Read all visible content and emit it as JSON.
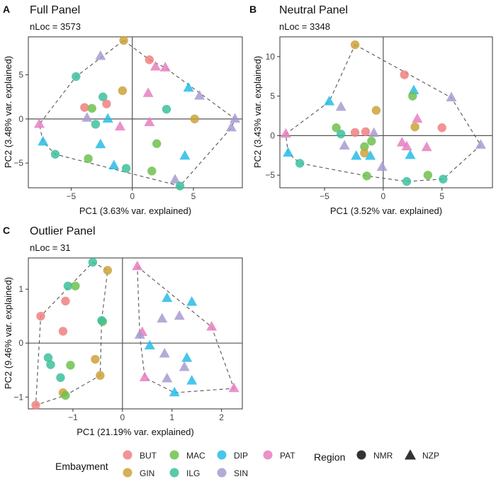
{
  "colors": {
    "BUT": "#F08080",
    "GIN": "#CCA23A",
    "MAC": "#6EC14F",
    "ILG": "#3DBF9E",
    "DIP": "#27BCE8",
    "PAT": "#E67FC0",
    "SIN": "#A89BD0"
  },
  "chart_data": [
    {
      "type": "scatter",
      "letter": "A",
      "title": "Full Panel",
      "subtitle": "nLoc = 3573",
      "xlabel": "PC1 (3.63% var. explained)",
      "ylabel": "PC2 (3.48% var. explained)",
      "xlim": [
        -8.5,
        9.0
      ],
      "ylim": [
        -7.8,
        9.3
      ],
      "xticks": [
        -5,
        0,
        5
      ],
      "yticks": [
        -5,
        0,
        5
      ],
      "points": [
        {
          "x": -0.7,
          "y": 8.9,
          "g": "GIN",
          "r": "NMR"
        },
        {
          "x": -4.6,
          "y": 4.8,
          "g": "ILG",
          "r": "NMR"
        },
        {
          "x": -2.6,
          "y": 7.1,
          "g": "SIN",
          "r": "NZP"
        },
        {
          "x": 1.4,
          "y": 6.7,
          "g": "BUT",
          "r": "NMR"
        },
        {
          "x": 1.9,
          "y": 5.9,
          "g": "PAT",
          "r": "NZP"
        },
        {
          "x": 2.7,
          "y": 5.8,
          "g": "PAT",
          "r": "NZP"
        },
        {
          "x": -0.8,
          "y": 3.2,
          "g": "GIN",
          "r": "NMR"
        },
        {
          "x": 1.3,
          "y": 2.9,
          "g": "PAT",
          "r": "NZP"
        },
        {
          "x": -2.4,
          "y": 2.5,
          "g": "ILG",
          "r": "NMR"
        },
        {
          "x": -3.9,
          "y": 1.3,
          "g": "BUT",
          "r": "NMR"
        },
        {
          "x": -3.3,
          "y": 1.2,
          "g": "MAC",
          "r": "NMR"
        },
        {
          "x": -2.1,
          "y": 1.7,
          "g": "BUT",
          "r": "NMR"
        },
        {
          "x": 4.6,
          "y": 3.5,
          "g": "DIP",
          "r": "NZP"
        },
        {
          "x": 5.5,
          "y": 2.6,
          "g": "SIN",
          "r": "NZP"
        },
        {
          "x": 2.8,
          "y": 1.1,
          "g": "ILG",
          "r": "NMR"
        },
        {
          "x": 5.1,
          "y": 0.0,
          "g": "GIN",
          "r": "NMR"
        },
        {
          "x": -3.7,
          "y": 0.1,
          "g": "SIN",
          "r": "NZP"
        },
        {
          "x": -3.0,
          "y": -0.6,
          "g": "ILG",
          "r": "NMR"
        },
        {
          "x": -2.0,
          "y": 0.0,
          "g": "DIP",
          "r": "NZP"
        },
        {
          "x": -1.0,
          "y": -0.9,
          "g": "PAT",
          "r": "NZP"
        },
        {
          "x": 1.4,
          "y": -0.4,
          "g": "PAT",
          "r": "NZP"
        },
        {
          "x": 8.4,
          "y": 0.0,
          "g": "SIN",
          "r": "NZP"
        },
        {
          "x": 8.1,
          "y": -1.0,
          "g": "SIN",
          "r": "NZP"
        },
        {
          "x": -7.6,
          "y": -0.6,
          "g": "PAT",
          "r": "NZP"
        },
        {
          "x": -7.3,
          "y": -2.6,
          "g": "DIP",
          "r": "NZP"
        },
        {
          "x": -2.6,
          "y": -2.9,
          "g": "DIP",
          "r": "NZP"
        },
        {
          "x": 2.0,
          "y": -2.8,
          "g": "MAC",
          "r": "NMR"
        },
        {
          "x": -6.3,
          "y": -4.0,
          "g": "ILG",
          "r": "NMR"
        },
        {
          "x": -3.6,
          "y": -4.5,
          "g": "MAC",
          "r": "NMR"
        },
        {
          "x": 4.3,
          "y": -4.2,
          "g": "DIP",
          "r": "NZP"
        },
        {
          "x": -1.5,
          "y": -5.3,
          "g": "DIP",
          "r": "NZP"
        },
        {
          "x": -0.5,
          "y": -5.6,
          "g": "ILG",
          "r": "NMR"
        },
        {
          "x": 1.6,
          "y": -5.9,
          "g": "MAC",
          "r": "NMR"
        },
        {
          "x": 3.5,
          "y": -6.9,
          "g": "SIN",
          "r": "NZP"
        },
        {
          "x": 3.9,
          "y": -7.6,
          "g": "ILG",
          "r": "NMR"
        }
      ],
      "hull": [
        [
          -0.7,
          8.9
        ],
        [
          1.4,
          6.7
        ],
        [
          2.7,
          5.8
        ],
        [
          8.4,
          0.0
        ],
        [
          8.1,
          -1.0
        ],
        [
          3.9,
          -7.6
        ],
        [
          -6.3,
          -4.0
        ],
        [
          -7.3,
          -2.6
        ],
        [
          -7.6,
          -0.6
        ],
        [
          -4.6,
          4.8
        ]
      ]
    },
    {
      "type": "scatter",
      "letter": "B",
      "title": "Neutral Panel",
      "subtitle": "nLoc = 3348",
      "xlabel": "PC1 (3.52% var. explained)",
      "ylabel": "PC2 (3.43% var. explained)",
      "xlim": [
        -8.8,
        9.3
      ],
      "ylim": [
        -6.6,
        12.5
      ],
      "xticks": [
        -5,
        0,
        5
      ],
      "yticks": [
        -5,
        0,
        5,
        10
      ],
      "points": [
        {
          "x": -2.4,
          "y": 11.5,
          "g": "GIN",
          "r": "NMR"
        },
        {
          "x": 1.8,
          "y": 7.7,
          "g": "BUT",
          "r": "NMR"
        },
        {
          "x": 2.6,
          "y": 5.7,
          "g": "DIP",
          "r": "NZP"
        },
        {
          "x": 2.5,
          "y": 5.0,
          "g": "MAC",
          "r": "NMR"
        },
        {
          "x": 5.8,
          "y": 4.8,
          "g": "SIN",
          "r": "NZP"
        },
        {
          "x": -4.6,
          "y": 4.3,
          "g": "DIP",
          "r": "NZP"
        },
        {
          "x": -3.6,
          "y": 3.6,
          "g": "SIN",
          "r": "NZP"
        },
        {
          "x": -0.6,
          "y": 3.2,
          "g": "GIN",
          "r": "NMR"
        },
        {
          "x": 2.9,
          "y": 2.1,
          "g": "PAT",
          "r": "NZP"
        },
        {
          "x": 2.7,
          "y": 1.1,
          "g": "GIN",
          "r": "NMR"
        },
        {
          "x": 5.0,
          "y": 1.0,
          "g": "BUT",
          "r": "NMR"
        },
        {
          "x": -4.0,
          "y": 1.0,
          "g": "MAC",
          "r": "NMR"
        },
        {
          "x": -3.6,
          "y": 0.2,
          "g": "ILG",
          "r": "NMR"
        },
        {
          "x": -2.4,
          "y": 0.4,
          "g": "BUT",
          "r": "NMR"
        },
        {
          "x": -1.5,
          "y": 0.5,
          "g": "BUT",
          "r": "NMR"
        },
        {
          "x": -0.8,
          "y": 0.3,
          "g": "SIN",
          "r": "NZP"
        },
        {
          "x": -8.3,
          "y": 0.2,
          "g": "PAT",
          "r": "NZP"
        },
        {
          "x": -8.1,
          "y": -2.2,
          "g": "DIP",
          "r": "NZP"
        },
        {
          "x": -7.1,
          "y": -3.5,
          "g": "ILG",
          "r": "NMR"
        },
        {
          "x": -3.3,
          "y": -1.3,
          "g": "SIN",
          "r": "NZP"
        },
        {
          "x": -1.6,
          "y": -1.4,
          "g": "MAC",
          "r": "NMR"
        },
        {
          "x": -1.6,
          "y": -2.2,
          "g": "GIN",
          "r": "NMR"
        },
        {
          "x": -1.1,
          "y": -2.6,
          "g": "DIP",
          "r": "NZP"
        },
        {
          "x": -2.3,
          "y": -2.6,
          "g": "DIP",
          "r": "NZP"
        },
        {
          "x": -1.0,
          "y": -0.7,
          "g": "MAC",
          "r": "NMR"
        },
        {
          "x": 1.6,
          "y": -0.9,
          "g": "PAT",
          "r": "NZP"
        },
        {
          "x": 2.0,
          "y": -1.4,
          "g": "PAT",
          "r": "NZP"
        },
        {
          "x": 3.7,
          "y": -1.5,
          "g": "PAT",
          "r": "NZP"
        },
        {
          "x": 2.3,
          "y": -2.5,
          "g": "DIP",
          "r": "NZP"
        },
        {
          "x": 8.3,
          "y": -1.2,
          "g": "SIN",
          "r": "NZP"
        },
        {
          "x": -0.1,
          "y": -4.0,
          "g": "SIN",
          "r": "NZP"
        },
        {
          "x": -1.4,
          "y": -5.1,
          "g": "MAC",
          "r": "NMR"
        },
        {
          "x": 2.0,
          "y": -5.8,
          "g": "ILG",
          "r": "NMR"
        },
        {
          "x": 3.8,
          "y": -5.0,
          "g": "MAC",
          "r": "NMR"
        },
        {
          "x": 5.1,
          "y": -5.5,
          "g": "ILG",
          "r": "NMR"
        }
      ],
      "hull": [
        [
          -2.4,
          11.5
        ],
        [
          5.8,
          4.8
        ],
        [
          8.3,
          -1.2
        ],
        [
          5.1,
          -5.5
        ],
        [
          2.0,
          -5.8
        ],
        [
          -1.4,
          -5.1
        ],
        [
          -7.1,
          -3.5
        ],
        [
          -8.1,
          -2.2
        ],
        [
          -8.3,
          0.2
        ],
        [
          -4.6,
          4.3
        ]
      ]
    },
    {
      "type": "scatter",
      "letter": "C",
      "title": "Outlier Panel",
      "subtitle": "nLoc = 31",
      "xlabel": "PC1 (21.19% var. explained)",
      "ylabel": "PC2 (9.46% var. explained)",
      "xlim": [
        -1.9,
        2.42
      ],
      "ylim": [
        -1.22,
        1.58
      ],
      "xticks": [
        -1,
        0,
        1,
        2
      ],
      "yticks": [
        -1,
        0,
        1
      ],
      "points": [
        {
          "x": -0.6,
          "y": 1.5,
          "g": "ILG",
          "r": "NMR"
        },
        {
          "x": -0.3,
          "y": 1.35,
          "g": "GIN",
          "r": "NMR"
        },
        {
          "x": -1.1,
          "y": 1.06,
          "g": "ILG",
          "r": "NMR"
        },
        {
          "x": -0.95,
          "y": 1.06,
          "g": "MAC",
          "r": "NMR"
        },
        {
          "x": -1.15,
          "y": 0.78,
          "g": "BUT",
          "r": "NMR"
        },
        {
          "x": -1.65,
          "y": 0.5,
          "g": "BUT",
          "r": "NMR"
        },
        {
          "x": -0.4,
          "y": 0.4,
          "g": "MAC",
          "r": "NMR"
        },
        {
          "x": -0.42,
          "y": 0.42,
          "g": "ILG",
          "r": "NMR"
        },
        {
          "x": -1.2,
          "y": 0.22,
          "g": "BUT",
          "r": "NMR"
        },
        {
          "x": -1.5,
          "y": -0.27,
          "g": "ILG",
          "r": "NMR"
        },
        {
          "x": -1.45,
          "y": -0.4,
          "g": "ILG",
          "r": "NMR"
        },
        {
          "x": -1.05,
          "y": -0.41,
          "g": "MAC",
          "r": "NMR"
        },
        {
          "x": -0.55,
          "y": -0.3,
          "g": "GIN",
          "r": "NMR"
        },
        {
          "x": -1.25,
          "y": -0.64,
          "g": "ILG",
          "r": "NMR"
        },
        {
          "x": -0.45,
          "y": -0.6,
          "g": "GIN",
          "r": "NMR"
        },
        {
          "x": -1.2,
          "y": -0.92,
          "g": "GIN",
          "r": "NMR"
        },
        {
          "x": -1.15,
          "y": -0.97,
          "g": "MAC",
          "r": "NMR"
        },
        {
          "x": -1.75,
          "y": -1.15,
          "g": "BUT",
          "r": "NMR"
        },
        {
          "x": 0.3,
          "y": 1.42,
          "g": "PAT",
          "r": "NZP"
        },
        {
          "x": 0.9,
          "y": 0.83,
          "g": "DIP",
          "r": "NZP"
        },
        {
          "x": 1.4,
          "y": 0.76,
          "g": "DIP",
          "r": "NZP"
        },
        {
          "x": 0.8,
          "y": 0.45,
          "g": "SIN",
          "r": "NZP"
        },
        {
          "x": 1.15,
          "y": 0.5,
          "g": "SIN",
          "r": "NZP"
        },
        {
          "x": 1.8,
          "y": 0.3,
          "g": "PAT",
          "r": "NZP"
        },
        {
          "x": 0.4,
          "y": 0.2,
          "g": "PAT",
          "r": "NZP"
        },
        {
          "x": 0.35,
          "y": 0.15,
          "g": "SIN",
          "r": "NZP"
        },
        {
          "x": 0.55,
          "y": -0.05,
          "g": "DIP",
          "r": "NZP"
        },
        {
          "x": 0.85,
          "y": -0.2,
          "g": "SIN",
          "r": "NZP"
        },
        {
          "x": 1.3,
          "y": -0.28,
          "g": "DIP",
          "r": "NZP"
        },
        {
          "x": 1.25,
          "y": -0.45,
          "g": "SIN",
          "r": "NZP"
        },
        {
          "x": 0.9,
          "y": -0.66,
          "g": "SIN",
          "r": "NZP"
        },
        {
          "x": 1.4,
          "y": -0.7,
          "g": "DIP",
          "r": "NZP"
        },
        {
          "x": 0.45,
          "y": -0.64,
          "g": "PAT",
          "r": "NZP"
        },
        {
          "x": 1.05,
          "y": -0.92,
          "g": "DIP",
          "r": "NZP"
        },
        {
          "x": 2.25,
          "y": -0.84,
          "g": "PAT",
          "r": "NZP"
        }
      ],
      "hulls": [
        [
          [
            -0.6,
            1.5
          ],
          [
            -0.3,
            1.35
          ],
          [
            -0.42,
            0.42
          ],
          [
            -0.45,
            -0.6
          ],
          [
            -1.15,
            -0.97
          ],
          [
            -1.75,
            -1.15
          ],
          [
            -1.65,
            0.5
          ]
        ],
        [
          [
            0.3,
            1.42
          ],
          [
            1.8,
            0.3
          ],
          [
            2.25,
            -0.84
          ],
          [
            1.05,
            -0.92
          ],
          [
            0.45,
            -0.64
          ],
          [
            0.35,
            0.15
          ]
        ]
      ]
    }
  ],
  "legend": {
    "embayment_title": "Embayment",
    "embayment_items": [
      "BUT",
      "MAC",
      "DIP",
      "PAT",
      "GIN",
      "ILG",
      "SIN"
    ],
    "region_title": "Region",
    "region_items": [
      {
        "label": "NMR",
        "shape": "circle"
      },
      {
        "label": "NZP",
        "shape": "triangle"
      }
    ]
  }
}
